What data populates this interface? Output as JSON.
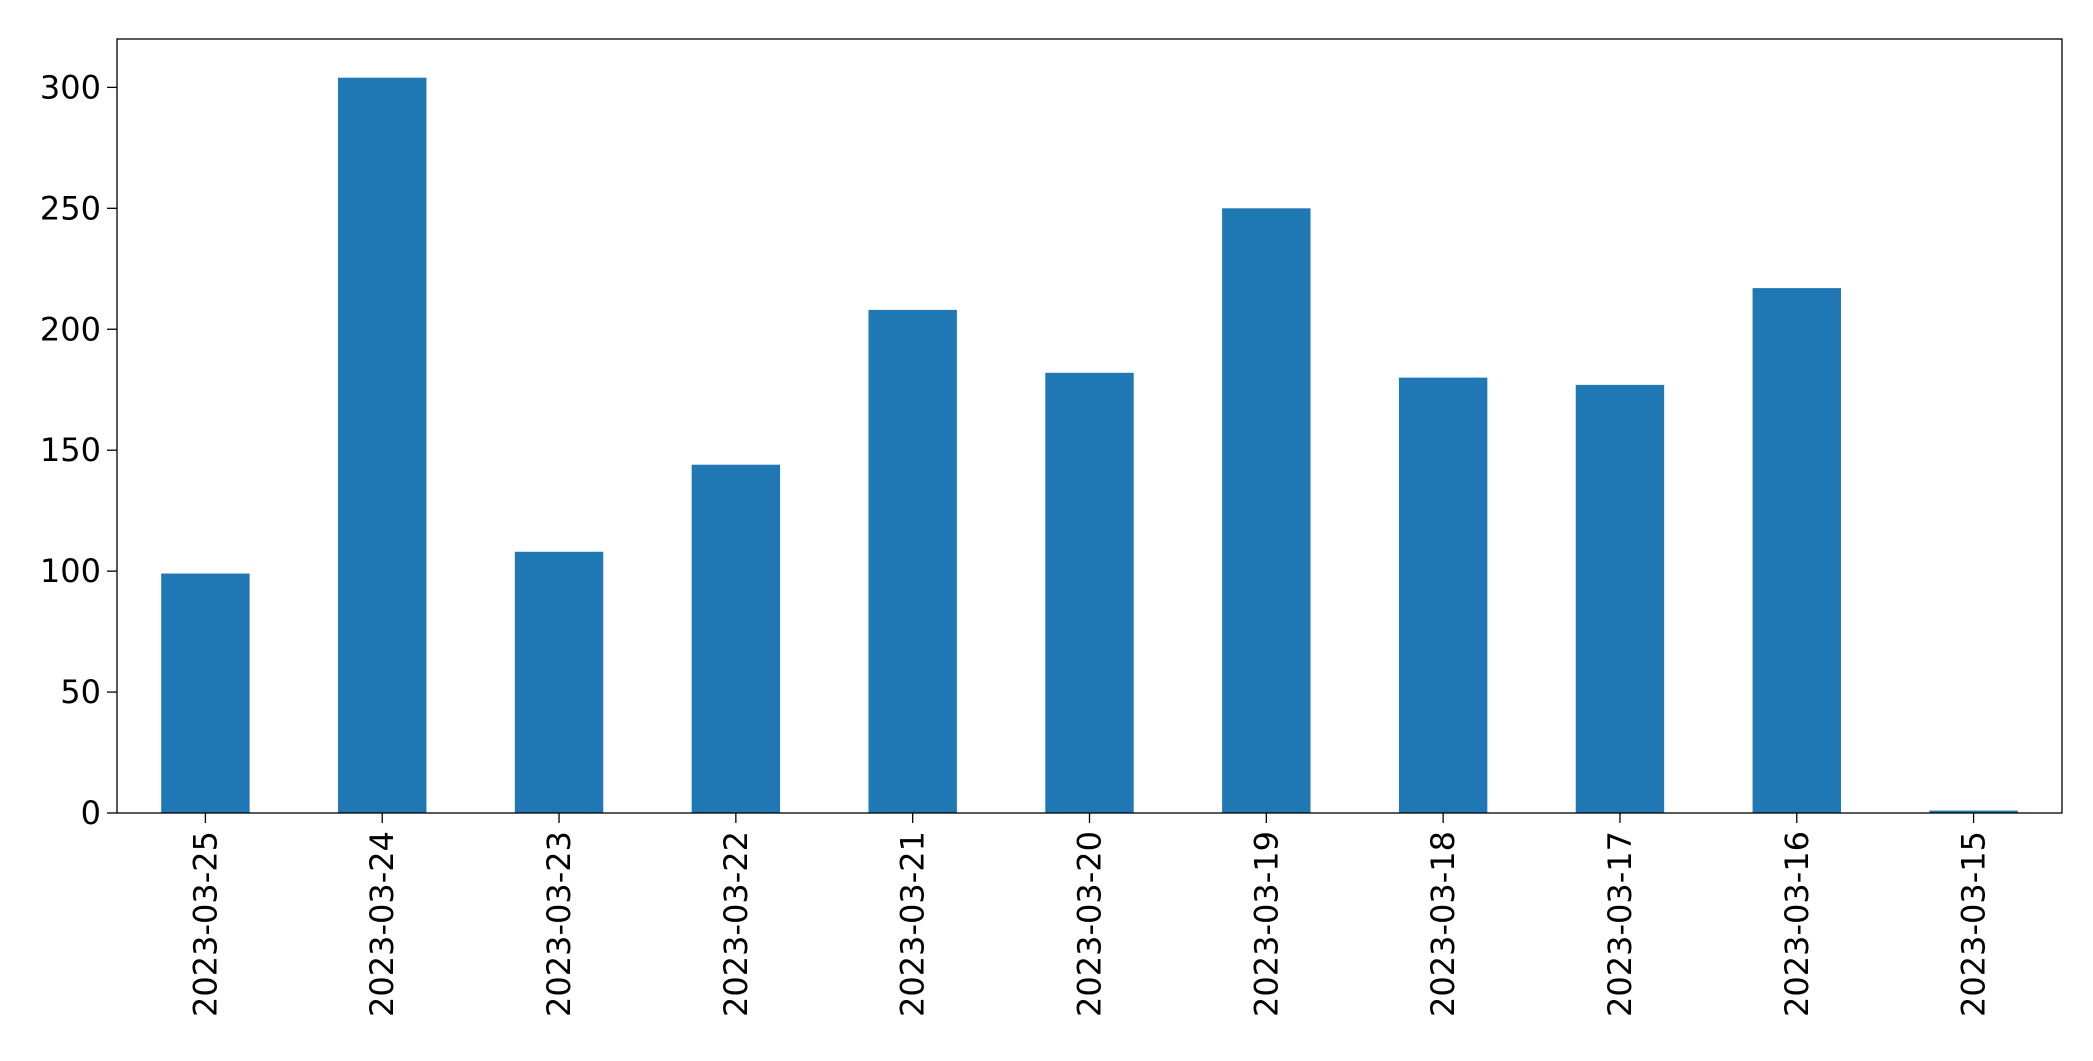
{
  "chart_data": {
    "type": "bar",
    "categories": [
      "2023-03-25",
      "2023-03-24",
      "2023-03-23",
      "2023-03-22",
      "2023-03-21",
      "2023-03-20",
      "2023-03-19",
      "2023-03-18",
      "2023-03-17",
      "2023-03-16",
      "2023-03-15"
    ],
    "values": [
      99,
      304,
      108,
      144,
      208,
      182,
      250,
      180,
      177,
      217,
      1
    ],
    "color": "#1f77b4",
    "ylim": [
      0,
      320
    ],
    "yticks": [
      0,
      50,
      100,
      150,
      200,
      250,
      300
    ],
    "grid": false
  }
}
